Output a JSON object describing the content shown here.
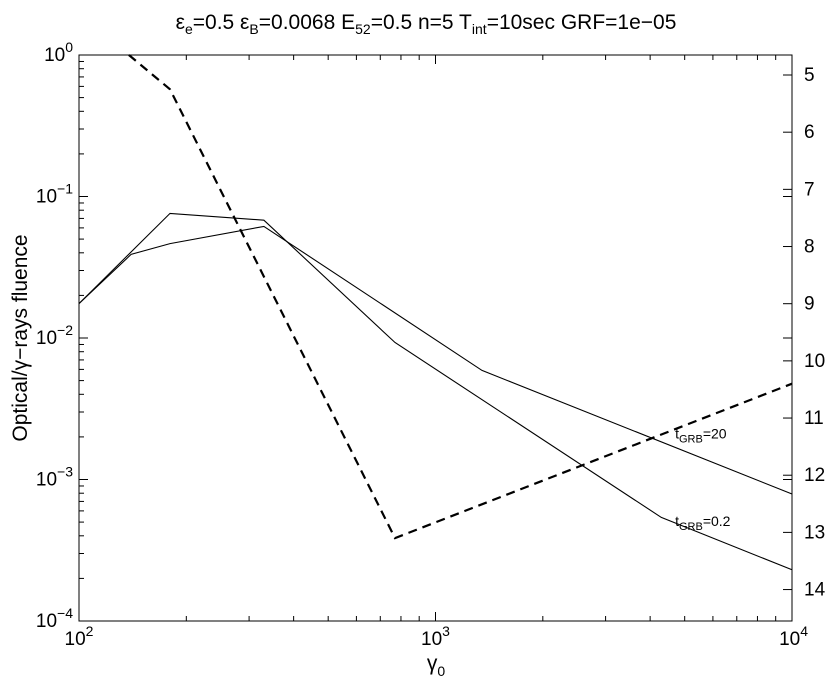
{
  "chart_data": {
    "type": "line",
    "title": {
      "parts": [
        {
          "t": "ε",
          "sub": "e"
        },
        {
          "t": "=0.5 ε",
          "sub": "B"
        },
        {
          "t": "=0.0068 E",
          "sub": "52"
        },
        {
          "t": "=0.5 n=5 T",
          "sub": "int"
        },
        {
          "t": "=10sec GRF=1e−05",
          "sub": ""
        }
      ]
    },
    "xlabel": {
      "t": "γ",
      "sub": "0"
    },
    "ylabel": "Optical/γ−rays fluence",
    "x_scale": "log",
    "y_scale": "log",
    "xlim": [
      100,
      10000
    ],
    "ylim": [
      0.0001,
      1
    ],
    "x_ticks": [
      {
        "value": 100,
        "base": "10",
        "exp": "2"
      },
      {
        "value": 1000,
        "base": "10",
        "exp": "3"
      },
      {
        "value": 10000,
        "base": "10",
        "exp": "4"
      }
    ],
    "y_ticks": [
      {
        "value": 1,
        "base": "10",
        "exp": "0"
      },
      {
        "value": 0.1,
        "base": "10",
        "exp": "−1"
      },
      {
        "value": 0.01,
        "base": "10",
        "exp": "−2"
      },
      {
        "value": 0.001,
        "base": "10",
        "exp": "−3"
      },
      {
        "value": 0.0001,
        "base": "10",
        "exp": "−4"
      }
    ],
    "right_axis": {
      "scale": "linear",
      "ylim": [
        4.65,
        14.55
      ],
      "inverted": true,
      "ticks": [
        5,
        6,
        7,
        8,
        9,
        10,
        11,
        12,
        13,
        14
      ]
    },
    "grid": false,
    "series": [
      {
        "name": "t_GRB=20",
        "axis": "left",
        "style": "solid",
        "x": [
          100,
          140,
          180,
          330,
          1350,
          10000
        ],
        "y": [
          0.0175,
          0.039,
          0.0465,
          0.0615,
          0.0059,
          0.00079
        ]
      },
      {
        "name": "t_GRB=0.2",
        "axis": "left",
        "style": "solid",
        "x": [
          100,
          180,
          330,
          770,
          4300,
          10000
        ],
        "y": [
          0.0175,
          0.076,
          0.068,
          0.0093,
          0.00054,
          0.00023
        ]
      },
      {
        "name": "",
        "axis": "right",
        "style": "dashed",
        "x": [
          138,
          180,
          770,
          10000
        ],
        "y": [
          4.65,
          5.25,
          13.1,
          10.4
        ]
      }
    ],
    "annotations": [
      {
        "t": "t",
        "sub": "GRB",
        "rest": "=20",
        "x": 4700,
        "y": 0.00195
      },
      {
        "t": "t",
        "sub": "GRB",
        "rest": "=0.2",
        "x": 4700,
        "y": 0.00047
      }
    ]
  }
}
